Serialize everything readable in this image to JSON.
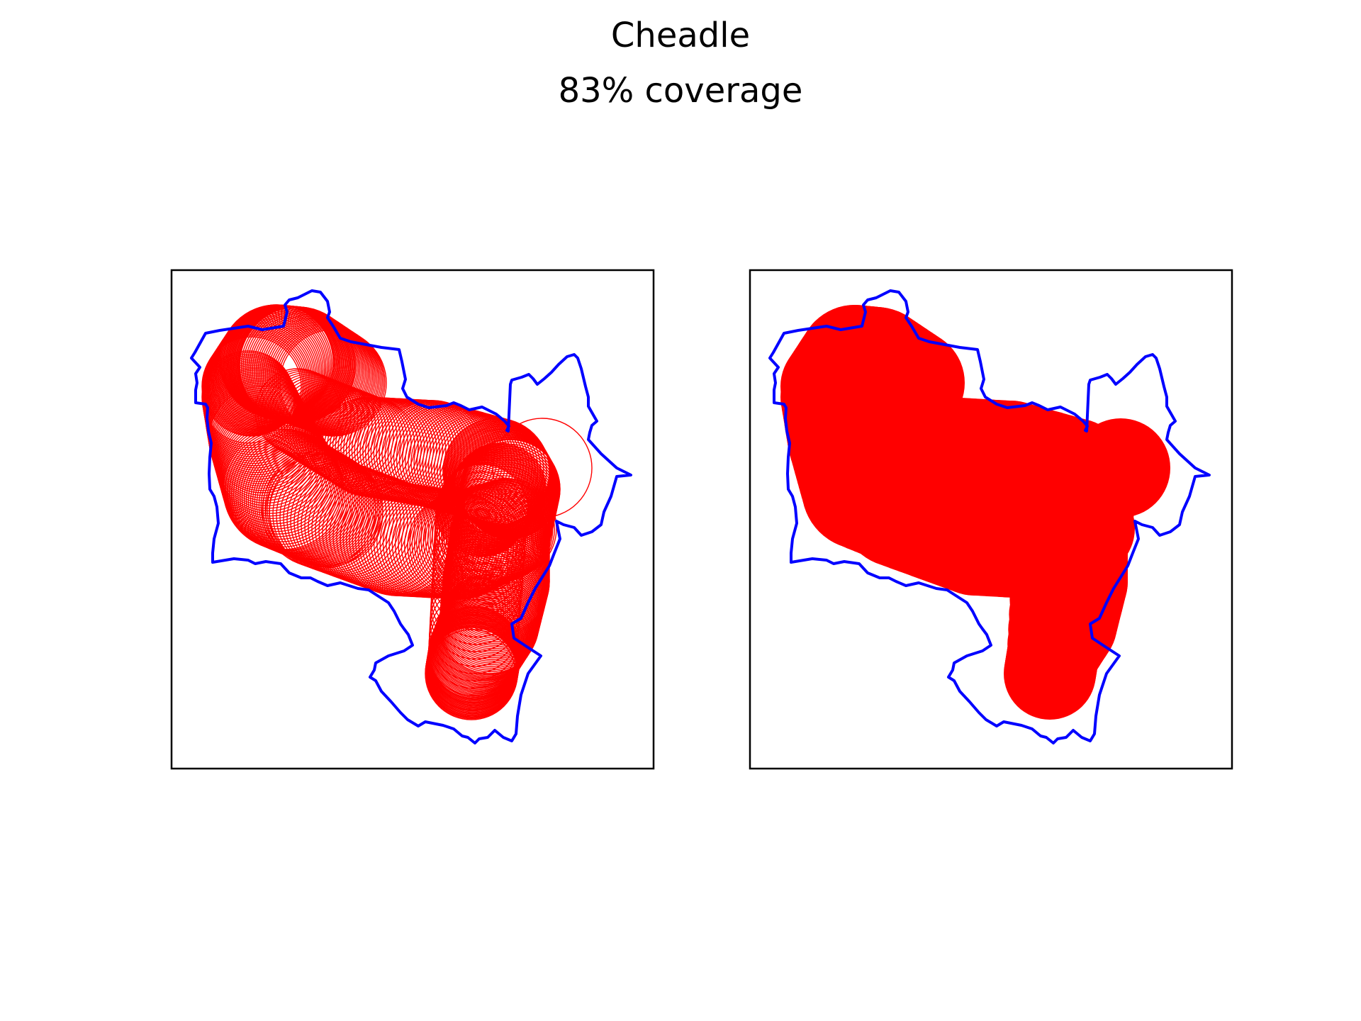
{
  "figure": {
    "title": "Cheadle",
    "subtitle": "83% coverage"
  },
  "colors": {
    "boundary": "#0000ff",
    "coverage": "#ff0000",
    "frame": "#000000"
  },
  "panels": [
    {
      "name": "circle-outlines",
      "style": "outline"
    },
    {
      "name": "coverage-filled",
      "style": "filled"
    }
  ]
}
